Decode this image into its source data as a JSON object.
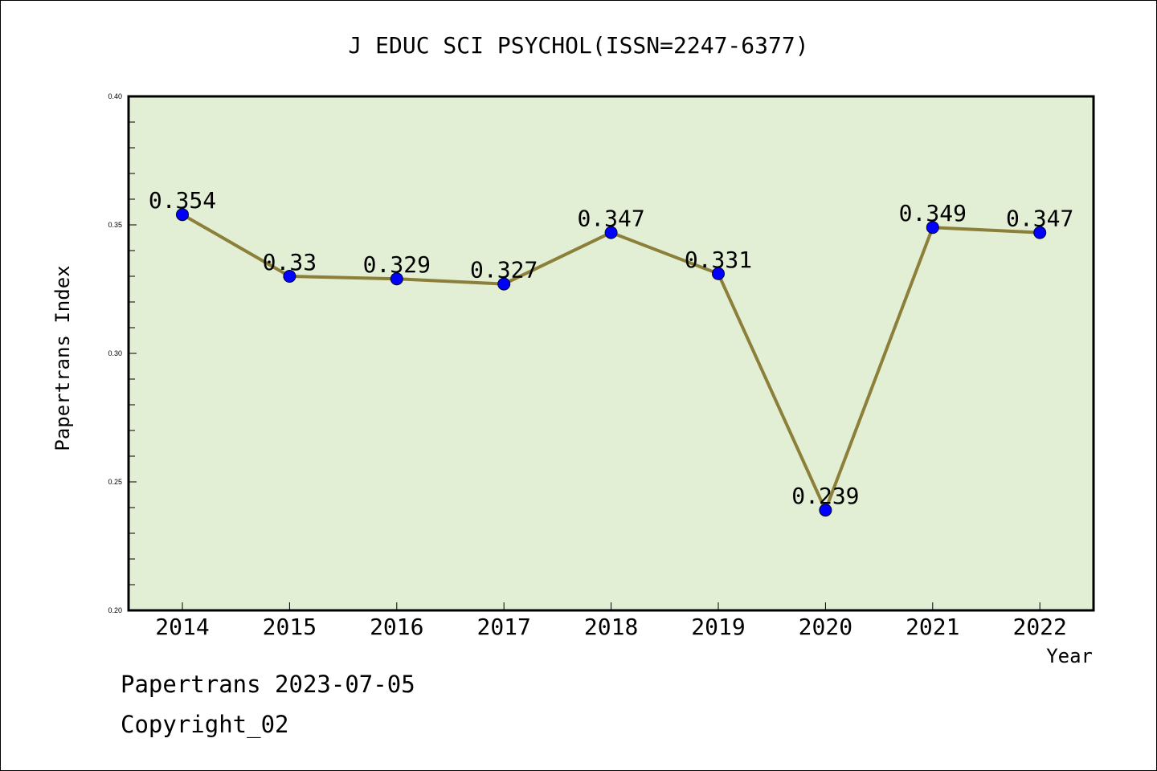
{
  "chart_data": {
    "type": "line",
    "title": "J EDUC SCI PSYCHOL(ISSN=2247-6377)",
    "xlabel": "Year",
    "ylabel": "Papertrans Index",
    "categories": [
      "2014",
      "2015",
      "2016",
      "2017",
      "2018",
      "2019",
      "2020",
      "2021",
      "2022"
    ],
    "series": [
      {
        "values": [
          0.354,
          0.33,
          0.329,
          0.327,
          0.347,
          0.331,
          0.239,
          0.349,
          0.347
        ],
        "data_labels": [
          "0.354",
          "0.33",
          "0.329",
          "0.327",
          "0.347",
          "0.331",
          "0.239",
          "0.349",
          "0.347"
        ]
      }
    ],
    "ylim": [
      0.2,
      0.4
    ],
    "yticks": [
      "0.20",
      "0.25",
      "0.30",
      "0.35",
      "0.40"
    ],
    "grid": false,
    "legend": "none"
  },
  "colors": {
    "plot_background": "#e2efd4",
    "line": "#8b7f3a",
    "marker": "#0000ff",
    "axis": "#000000"
  },
  "footer": {
    "date_line": "Papertrans 2023-07-05",
    "copyright": "Copyright_02"
  }
}
